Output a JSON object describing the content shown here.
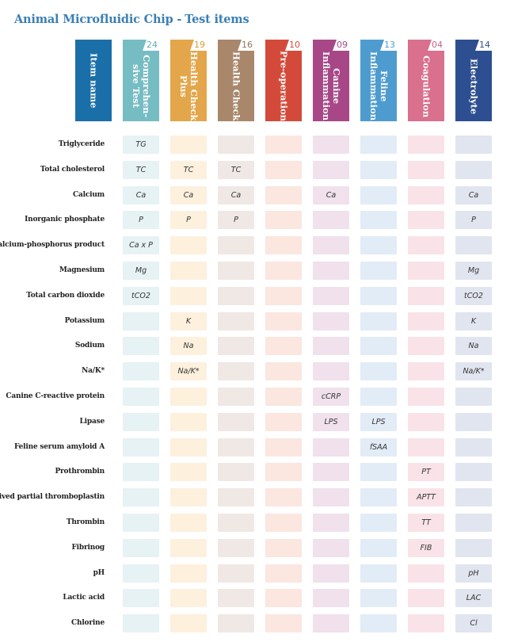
{
  "title": {
    "part1": "Animal Microfluidic Chip -",
    "part2": "Test items"
  },
  "columns": [
    {
      "name": "Item name",
      "number": "",
      "color": "#1b6fa8",
      "cell_color": "#ffffff",
      "num_color": "#1b6fa8"
    },
    {
      "name": "Comprehen-\nsive Test",
      "number": "24",
      "color": "#76bcc3",
      "cell_color": "#e6f2f4",
      "num_color": "#5fafb8"
    },
    {
      "name": "Health Check\nPlus",
      "number": "19",
      "color": "#e4a64a",
      "cell_color": "#fdf0dd",
      "num_color": "#d69a3e"
    },
    {
      "name": "Health Check",
      "number": "16",
      "color": "#a8876b",
      "cell_color": "#efe8e4",
      "num_color": "#8f735c"
    },
    {
      "name": "Pre-operation",
      "number": "10",
      "color": "#d44a3a",
      "cell_color": "#fbe6e0",
      "num_color": "#d44a3a"
    },
    {
      "name": "Canine\nInflammation",
      "number": "09",
      "color": "#a84788",
      "cell_color": "#f0e1ec",
      "num_color": "#a84788"
    },
    {
      "name": "Feline\nInflammation",
      "number": "13",
      "color": "#4e9ccf",
      "cell_color": "#e2ecf7",
      "num_color": "#4e9ccf"
    },
    {
      "name": "Coagulation",
      "number": "04",
      "color": "#d8708e",
      "cell_color": "#f9e3e8",
      "num_color": "#cc6384"
    },
    {
      "name": "Electrolyte",
      "number": "14",
      "color": "#2d4f91",
      "cell_color": "#e1e5ef",
      "num_color": "#2d4f91"
    }
  ],
  "rows": [
    {
      "label": "Triglyceride",
      "cells": [
        "TG",
        "",
        "",
        "",
        "",
        "",
        "",
        ""
      ]
    },
    {
      "label": "Total cholesterol",
      "cells": [
        "TC",
        "TC",
        "TC",
        "",
        "",
        "",
        "",
        ""
      ]
    },
    {
      "label": "Calcium",
      "cells": [
        "Ca",
        "Ca",
        "Ca",
        "",
        "Ca",
        "",
        "",
        "Ca"
      ]
    },
    {
      "label": "Inorganic phosphate",
      "cells": [
        "P",
        "P",
        "P",
        "",
        "",
        "",
        "",
        "P"
      ]
    },
    {
      "label": "Calcium-phosphorus product",
      "cells": [
        "Ca x P",
        "",
        "",
        "",
        "",
        "",
        "",
        ""
      ]
    },
    {
      "label": "Magnesium",
      "cells": [
        "Mg",
        "",
        "",
        "",
        "",
        "",
        "",
        "Mg"
      ]
    },
    {
      "label": "Total carbon dioxide",
      "cells": [
        "tCO2",
        "",
        "",
        "",
        "",
        "",
        "",
        "tCO2"
      ]
    },
    {
      "label": "Potassium",
      "cells": [
        "",
        "K",
        "",
        "",
        "",
        "",
        "",
        "K"
      ]
    },
    {
      "label": "Sodium",
      "cells": [
        "",
        "Na",
        "",
        "",
        "",
        "",
        "",
        "Na"
      ]
    },
    {
      "label": "Na/K*",
      "cells": [
        "",
        "Na/K*",
        "",
        "",
        "",
        "",
        "",
        "Na/K*"
      ]
    },
    {
      "label": "Canine C-reactive protein",
      "cells": [
        "",
        "",
        "",
        "",
        "cCRP",
        "",
        "",
        ""
      ]
    },
    {
      "label": "Lipase",
      "cells": [
        "",
        "",
        "",
        "",
        "LPS",
        "LPS",
        "",
        ""
      ]
    },
    {
      "label": "Feline serum amyloid A",
      "cells": [
        "",
        "",
        "",
        "",
        "",
        "fSAA",
        "",
        ""
      ]
    },
    {
      "label": "Prothrombin",
      "cells": [
        "",
        "",
        "",
        "",
        "",
        "",
        "PT",
        ""
      ]
    },
    {
      "label": "Actived partial thromboplastin",
      "cells": [
        "",
        "",
        "",
        "",
        "",
        "",
        "APTT",
        ""
      ]
    },
    {
      "label": "Thrombin",
      "cells": [
        "",
        "",
        "",
        "",
        "",
        "",
        "TT",
        ""
      ]
    },
    {
      "label": "Fibrinog",
      "cells": [
        "",
        "",
        "",
        "",
        "",
        "",
        "FIB",
        ""
      ]
    },
    {
      "label": "pH",
      "cells": [
        "",
        "",
        "",
        "",
        "",
        "",
        "",
        "pH"
      ]
    },
    {
      "label": "Lactic acid",
      "cells": [
        "",
        "",
        "",
        "",
        "",
        "",
        "",
        "LAC"
      ]
    },
    {
      "label": "Chlorine",
      "cells": [
        "",
        "",
        "",
        "",
        "",
        "",
        "",
        "Cl"
      ]
    }
  ]
}
